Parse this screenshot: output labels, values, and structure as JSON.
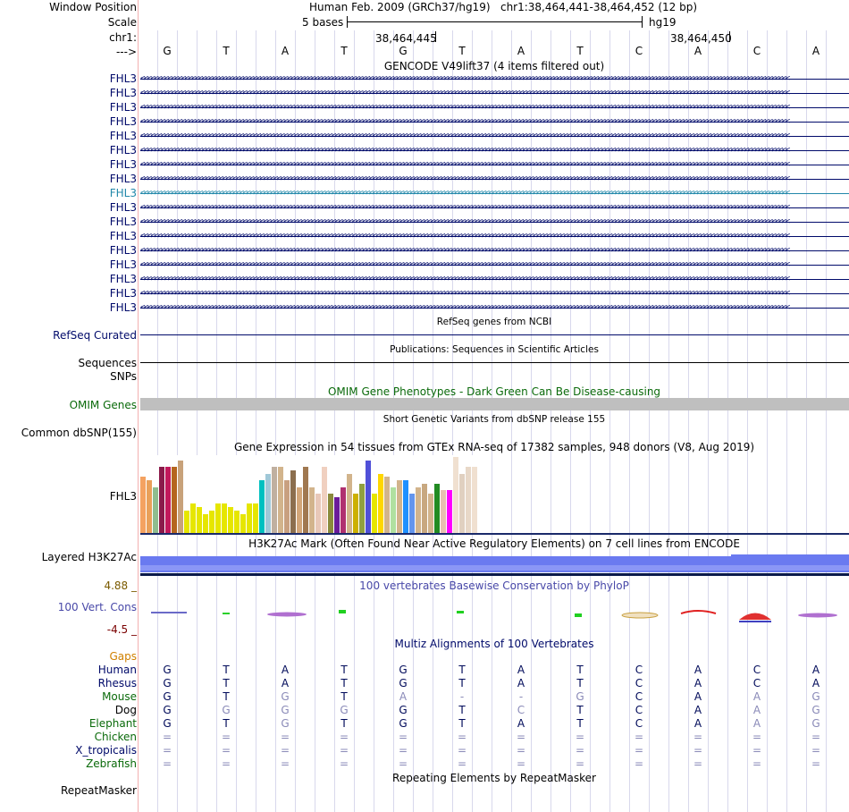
{
  "header": {
    "window_position_label": "Window Position",
    "scale_label": "Scale",
    "chr_label": "chr1:",
    "strand_label": "--->",
    "assembly": "Human Feb. 2009 (GRCh37/hg19)",
    "position": "chr1:38,464,441-38,464,452 (12 bp)",
    "scale_text": "5 bases",
    "scale_db": "hg19",
    "coord1": "38,464,445",
    "coord2": "38,464,450"
  },
  "bases": [
    "G",
    "T",
    "A",
    "T",
    "G",
    "T",
    "A",
    "T",
    "C",
    "A",
    "C",
    "A"
  ],
  "gencode": {
    "title": "GENCODE V49lift37 (4 items filtered out)",
    "rows": [
      {
        "label": "FHL3",
        "highlight": false
      },
      {
        "label": "FHL3",
        "highlight": false
      },
      {
        "label": "FHL3",
        "highlight": false
      },
      {
        "label": "FHL3",
        "highlight": false
      },
      {
        "label": "FHL3",
        "highlight": false
      },
      {
        "label": "FHL3",
        "highlight": false
      },
      {
        "label": "FHL3",
        "highlight": false
      },
      {
        "label": "FHL3",
        "highlight": false
      },
      {
        "label": "FHL3",
        "highlight": true
      },
      {
        "label": "FHL3",
        "highlight": false
      },
      {
        "label": "FHL3",
        "highlight": false
      },
      {
        "label": "FHL3",
        "highlight": false
      },
      {
        "label": "FHL3",
        "highlight": false
      },
      {
        "label": "FHL3",
        "highlight": false
      },
      {
        "label": "FHL3",
        "highlight": false
      },
      {
        "label": "FHL3",
        "highlight": false
      },
      {
        "label": "FHL3",
        "highlight": false
      }
    ]
  },
  "refseq": {
    "title": "RefSeq genes from NCBI",
    "label": "RefSeq Curated"
  },
  "pubs": {
    "title": "Publications: Sequences in Scientific Articles",
    "label1": "Sequences",
    "label2": "SNPs"
  },
  "omim": {
    "title": "OMIM Gene Phenotypes - Dark Green Can Be Disease-causing",
    "label": "OMIM Genes"
  },
  "dbsnp": {
    "title": "Short Genetic Variants from dbSNP release 155",
    "label": "Common dbSNP(155)"
  },
  "gtex": {
    "title": "Gene Expression in 54 tissues from GTEx RNA-seq of 17382 samples, 948 donors (V8, Aug 2019)",
    "label": "FHL3",
    "values": [
      17,
      16,
      14,
      20,
      20,
      20,
      22,
      7,
      9,
      8,
      6,
      7,
      9,
      9,
      8,
      7,
      6,
      9,
      9,
      16,
      18,
      20,
      20,
      16,
      19,
      14,
      20,
      14,
      12,
      20,
      12,
      11,
      14,
      18,
      12,
      15,
      22,
      12,
      18,
      17,
      14,
      16,
      16,
      12,
      14,
      15,
      12,
      15,
      13,
      13,
      23,
      18,
      20,
      20
    ],
    "colors": [
      "#f4a261",
      "#e9a05a",
      "#8fbc8f",
      "#8b1a4a",
      "#c2185b",
      "#b5651d",
      "#c8a27a",
      "#e6e600",
      "#e6e600",
      "#e6e600",
      "#e6e600",
      "#e6e600",
      "#e6e600",
      "#e6e600",
      "#e6e600",
      "#e6e600",
      "#e6e600",
      "#e6e600",
      "#e6e600",
      "#00c0c0",
      "#a0c8d8",
      "#c0b0a0",
      "#d2b48c",
      "#c8a080",
      "#8b6e4e",
      "#d2a679",
      "#a07850",
      "#d2b48c",
      "#e8c8b8",
      "#f0d0c0",
      "#8a8a3c",
      "#6a1b9a",
      "#b03070",
      "#d2b48c",
      "#ccb000",
      "#90a040",
      "#5050d8",
      "#e6e600",
      "#ffd700",
      "#d2b48c",
      "#b0e0a0",
      "#d2b48c",
      "#1e90ff",
      "#6495ed",
      "#d2b48c",
      "#c8a880",
      "#d2b48c",
      "#228b22",
      "#e8c0b0",
      "#ff00ff",
      "#f0e0d0",
      "#e0d0c0",
      "#e8d8c8",
      "#f0e0d0"
    ]
  },
  "h3k27ac": {
    "title": "H3K27Ac Mark (Often Found Near Active Regulatory Elements) on 7 cell lines from ENCODE",
    "label": "Layered H3K27Ac"
  },
  "cons": {
    "title": "100 vertebrates Basewise Conservation by PhyloP",
    "label": "100 Vert. Cons",
    "max": "4.88 _",
    "min": "-4.5 _"
  },
  "multiz": {
    "title": "Multiz Alignments of 100 Vertebrates",
    "gaps_label": "Gaps",
    "species": [
      {
        "name": "Human",
        "bases": [
          "G",
          "T",
          "A",
          "T",
          "G",
          "T",
          "A",
          "T",
          "C",
          "A",
          "C",
          "A"
        ]
      },
      {
        "name": "Rhesus",
        "bases": [
          "G",
          "T",
          "A",
          "T",
          "G",
          "T",
          "A",
          "T",
          "C",
          "A",
          "C",
          "A"
        ]
      },
      {
        "name": "Mouse",
        "bases": [
          "G",
          "T",
          "G",
          "T",
          "A",
          "-",
          "-",
          "G",
          "C",
          "A",
          "A",
          "G"
        ]
      },
      {
        "name": "Dog",
        "bases": [
          "G",
          "G",
          "G",
          "G",
          "G",
          "T",
          "C",
          "T",
          "C",
          "A",
          "A",
          "G"
        ]
      },
      {
        "name": "Elephant",
        "bases": [
          "G",
          "T",
          "G",
          "T",
          "G",
          "T",
          "A",
          "T",
          "C",
          "A",
          "A",
          "G"
        ]
      },
      {
        "name": "Chicken",
        "bases": [
          "=",
          "=",
          "=",
          "=",
          "=",
          "=",
          "=",
          "=",
          "=",
          "=",
          "=",
          "="
        ]
      },
      {
        "name": "X_tropicalis",
        "bases": [
          "=",
          "=",
          "=",
          "=",
          "=",
          "=",
          "=",
          "=",
          "=",
          "=",
          "=",
          "="
        ]
      },
      {
        "name": "Zebrafish",
        "bases": [
          "=",
          "=",
          "=",
          "=",
          "=",
          "=",
          "=",
          "=",
          "=",
          "=",
          "=",
          "="
        ]
      }
    ]
  },
  "rmsk": {
    "title": "Repeating Elements by RepeatMasker",
    "label": "RepeatMasker"
  },
  "colors": {
    "navy": "#000a6a",
    "teal": "#2288aa",
    "green": "#0a6a0a",
    "gaps": "#d08000",
    "cons_label": "#5555aa",
    "cons_max": "#7a5a00",
    "cons_min": "#7a0000",
    "chr_grid": "#d8d8ec"
  }
}
